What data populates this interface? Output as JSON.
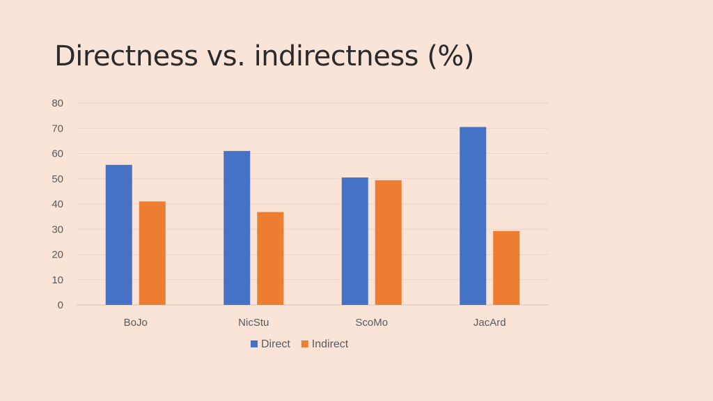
{
  "chart_data": {
    "type": "bar",
    "title": "Directness vs. indirectness (%)",
    "categories": [
      "BoJo",
      "NicStu",
      "ScoMo",
      "JacArd"
    ],
    "series": [
      {
        "name": "Direct",
        "values": [
          55.5,
          61,
          50.5,
          70.5
        ],
        "color": "#4472C4"
      },
      {
        "name": "Indirect",
        "values": [
          41,
          36.8,
          49.4,
          29.3
        ],
        "color": "#ED7D31"
      }
    ],
    "yticks": [
      0,
      10,
      20,
      30,
      40,
      50,
      60,
      70,
      80
    ],
    "ylim": [
      0,
      80
    ],
    "grid": true,
    "legend_position": "bottom"
  }
}
